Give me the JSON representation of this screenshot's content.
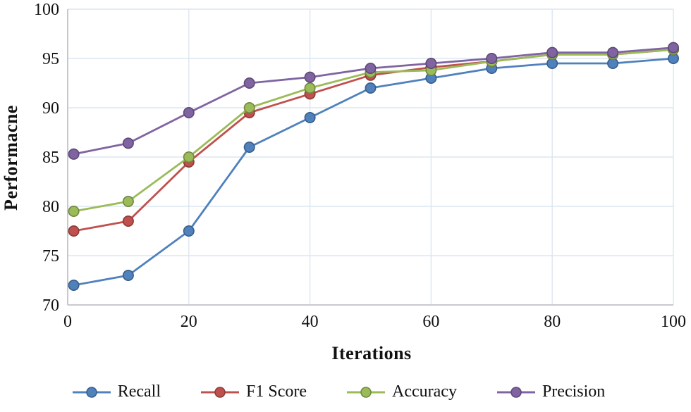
{
  "chart_data": {
    "type": "line",
    "title": "",
    "xlabel": "Iterations",
    "ylabel": "Performacne",
    "x": [
      1,
      10,
      20,
      30,
      40,
      50,
      60,
      70,
      80,
      90,
      100
    ],
    "xlim": [
      0,
      100
    ],
    "ylim": [
      70,
      100
    ],
    "x_ticks": [
      0,
      20,
      40,
      60,
      80,
      100
    ],
    "y_ticks": [
      70,
      75,
      80,
      85,
      90,
      95,
      100
    ],
    "grid": true,
    "legend_position": "bottom",
    "series": [
      {
        "name": "Recall",
        "color": "#4f81bd",
        "values": [
          72.0,
          73.0,
          77.5,
          86.0,
          89.0,
          92.0,
          93.0,
          94.0,
          94.5,
          94.5,
          95.0
        ]
      },
      {
        "name": "F1 Score",
        "color": "#c0504d",
        "values": [
          77.5,
          78.5,
          84.5,
          89.5,
          91.4,
          93.3,
          94.1,
          94.7,
          95.4,
          95.4,
          95.9
        ]
      },
      {
        "name": "Accuracy",
        "color": "#9bbb59",
        "values": [
          79.5,
          80.5,
          85.0,
          90.0,
          92.0,
          93.6,
          93.8,
          94.7,
          95.4,
          95.4,
          95.9
        ]
      },
      {
        "name": "Precision",
        "color": "#8064a2",
        "values": [
          85.3,
          86.4,
          89.5,
          92.5,
          93.1,
          94.0,
          94.5,
          95.0,
          95.6,
          95.6,
          96.1
        ]
      }
    ],
    "colors": {
      "grid": "#dce6f1",
      "axis": "#bfc3c7",
      "text": "#111111"
    }
  }
}
